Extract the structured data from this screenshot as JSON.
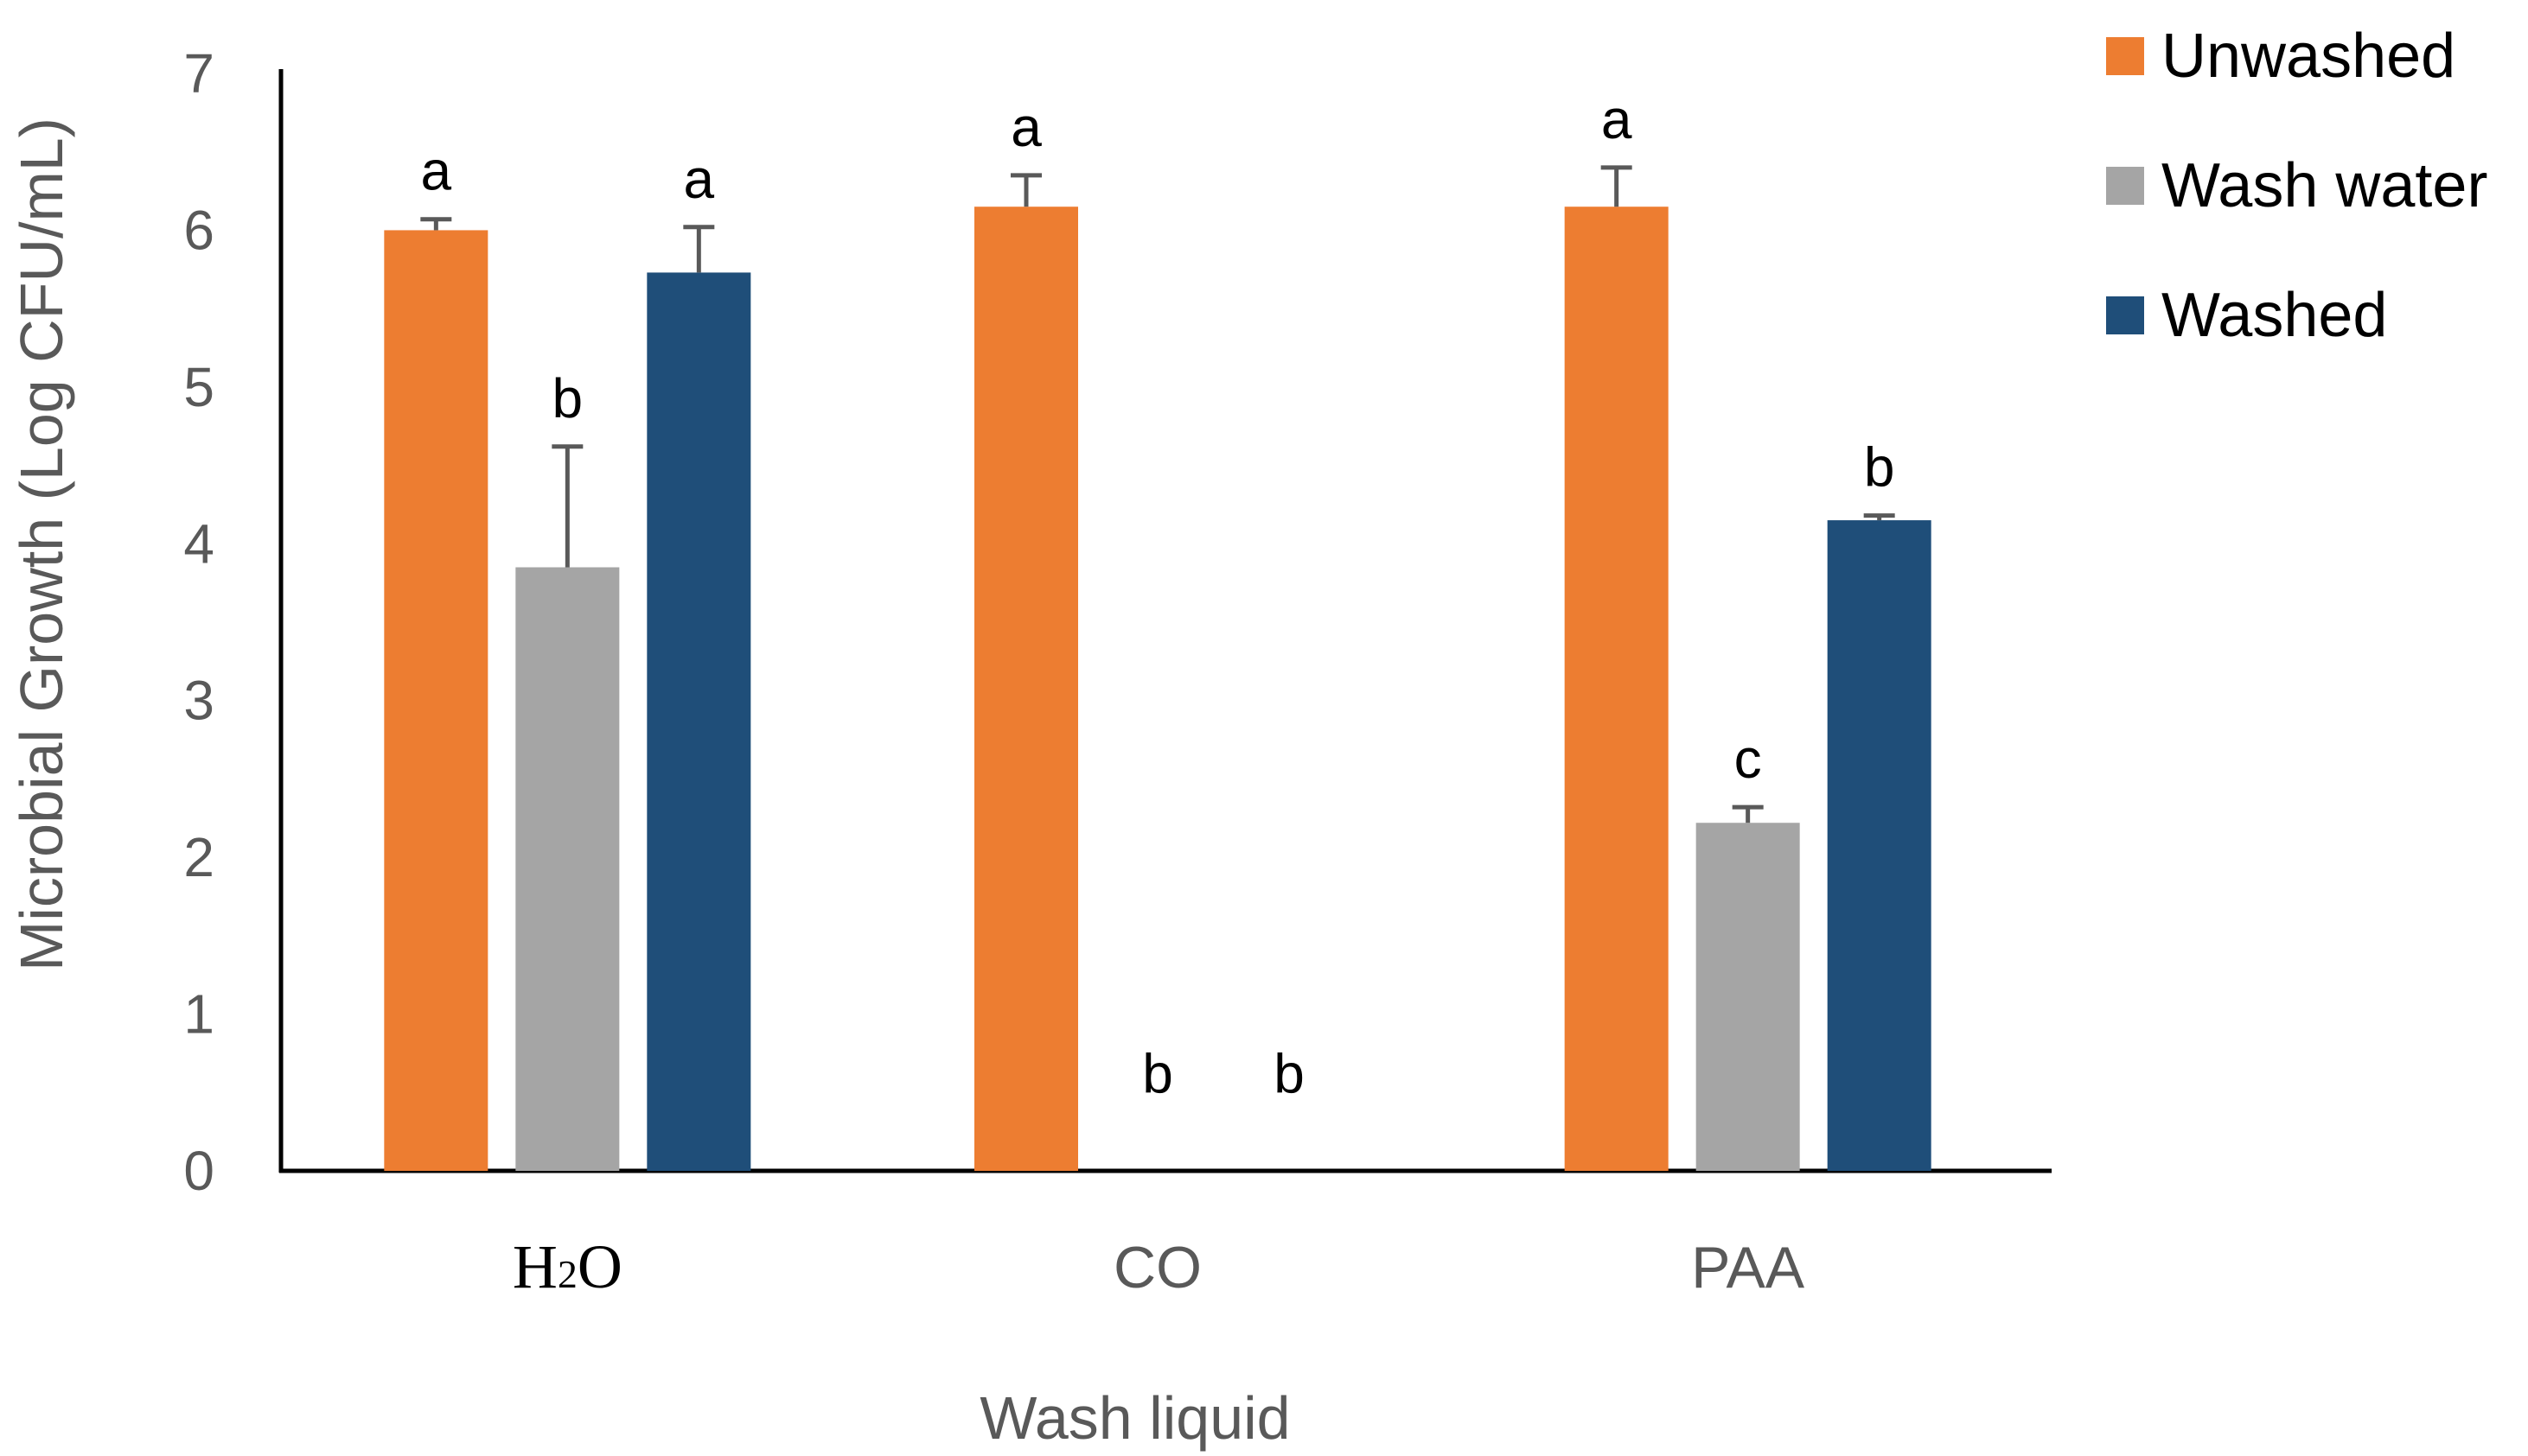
{
  "chart_data": {
    "type": "bar",
    "title": "",
    "xlabel": "Wash liquid",
    "ylabel": "Microbial Growth (Log CFU/mL)",
    "ylim": [
      0,
      7
    ],
    "yticks": [
      0,
      1,
      2,
      3,
      4,
      5,
      6,
      7
    ],
    "ytick_labels": [
      "0",
      "1",
      "2",
      "3",
      "4",
      "5",
      "6",
      "7"
    ],
    "grid": false,
    "legend_position": "top-right",
    "categories": [
      {
        "id": "h2o",
        "main": "H",
        "sub": "2",
        "tail": "O"
      },
      {
        "id": "co",
        "main": "CO",
        "sub": "",
        "tail": ""
      },
      {
        "id": "paa",
        "main": "PAA",
        "sub": "",
        "tail": ""
      }
    ],
    "series": [
      {
        "name": "Unwashed",
        "color": "#ED7D31",
        "values": [
          6.0,
          6.15,
          6.15
        ],
        "errors": [
          0.07,
          0.2,
          0.25
        ],
        "labels": [
          "a",
          "a",
          "a"
        ]
      },
      {
        "name": "Wash water",
        "color": "#A5A5A5",
        "values": [
          3.85,
          0,
          2.22
        ],
        "errors": [
          0.77,
          0,
          0.1
        ],
        "labels": [
          "b",
          "b",
          "c"
        ]
      },
      {
        "name": "Washed",
        "color": "#1F4E79",
        "values": [
          5.73,
          0,
          4.15
        ],
        "errors": [
          0.29,
          0,
          0.03
        ],
        "labels": [
          "a",
          "b",
          "b"
        ]
      }
    ]
  }
}
